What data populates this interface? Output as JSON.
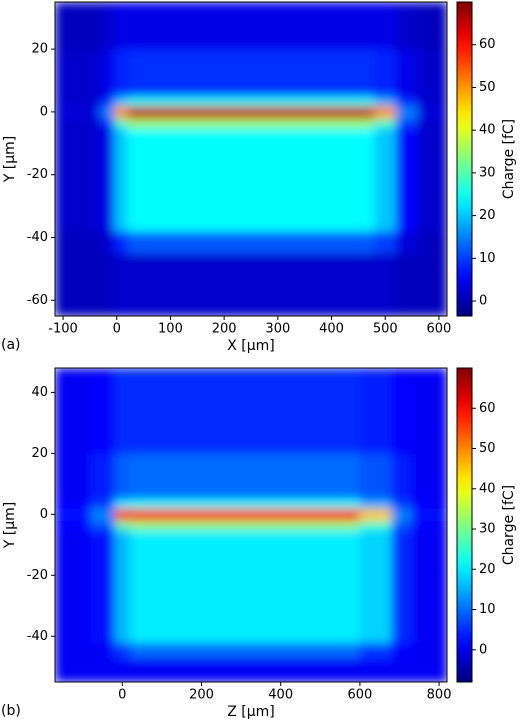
{
  "chart_data": [
    {
      "type": "heatmap",
      "panel_label": "(a)",
      "xlabel": "X [µm]",
      "ylabel": "Y [µm]",
      "colorbar_label": "Charge [fC]",
      "colormap": "jet",
      "xlim": [
        -115,
        615
      ],
      "ylim": [
        -65,
        35
      ],
      "xticks": [
        -100,
        0,
        100,
        200,
        300,
        400,
        500,
        600
      ],
      "yticks": [
        -60,
        -40,
        -20,
        0,
        20
      ],
      "clim": [
        -3.5,
        70
      ],
      "cticks": [
        0,
        10,
        20,
        30,
        40,
        50,
        60
      ],
      "x_edges": [
        -115,
        -30,
        -5,
        20,
        480,
        520,
        560,
        615
      ],
      "y_edges": [
        -65,
        -45,
        -38,
        -5,
        -2,
        2,
        5,
        20,
        35
      ],
      "z": [
        [
          1,
          1,
          2,
          2,
          2,
          1,
          1
        ],
        [
          1,
          2,
          8,
          12,
          10,
          3,
          1
        ],
        [
          2,
          4,
          20,
          24,
          20,
          6,
          2
        ],
        [
          2,
          8,
          28,
          35,
          28,
          10,
          2
        ],
        [
          3,
          15,
          50,
          65,
          50,
          15,
          3
        ],
        [
          2,
          8,
          20,
          25,
          18,
          8,
          2
        ],
        [
          2,
          4,
          8,
          9,
          8,
          4,
          2
        ],
        [
          1,
          2,
          4,
          4,
          4,
          2,
          1
        ]
      ]
    },
    {
      "type": "heatmap",
      "panel_label": "(b)",
      "xlabel": "Z [µm]",
      "ylabel": "Y [µm]",
      "colorbar_label": "Charge [fC]",
      "colormap": "jet",
      "xlim": [
        -170,
        820
      ],
      "ylim": [
        -55,
        48
      ],
      "xticks": [
        0,
        200,
        400,
        600,
        800
      ],
      "yticks": [
        -40,
        -20,
        0,
        20,
        40
      ],
      "clim": [
        -8,
        70
      ],
      "cticks": [
        0,
        10,
        20,
        30,
        40,
        50,
        60
      ],
      "x_edges": [
        -170,
        -80,
        -20,
        20,
        600,
        680,
        730,
        820
      ],
      "y_edges": [
        -55,
        -47,
        -42,
        -5,
        -2,
        2,
        5,
        20,
        48
      ],
      "z": [
        [
          1,
          1,
          1,
          1,
          1,
          1,
          1
        ],
        [
          1,
          1,
          6,
          10,
          6,
          2,
          1
        ],
        [
          1,
          3,
          16,
          20,
          18,
          5,
          1
        ],
        [
          2,
          8,
          28,
          32,
          25,
          8,
          2
        ],
        [
          3,
          12,
          58,
          60,
          45,
          12,
          3
        ],
        [
          2,
          6,
          20,
          22,
          15,
          6,
          2
        ],
        [
          1,
          4,
          9,
          10,
          8,
          4,
          1
        ],
        [
          1,
          2,
          5,
          5,
          4,
          2,
          1
        ]
      ]
    }
  ]
}
